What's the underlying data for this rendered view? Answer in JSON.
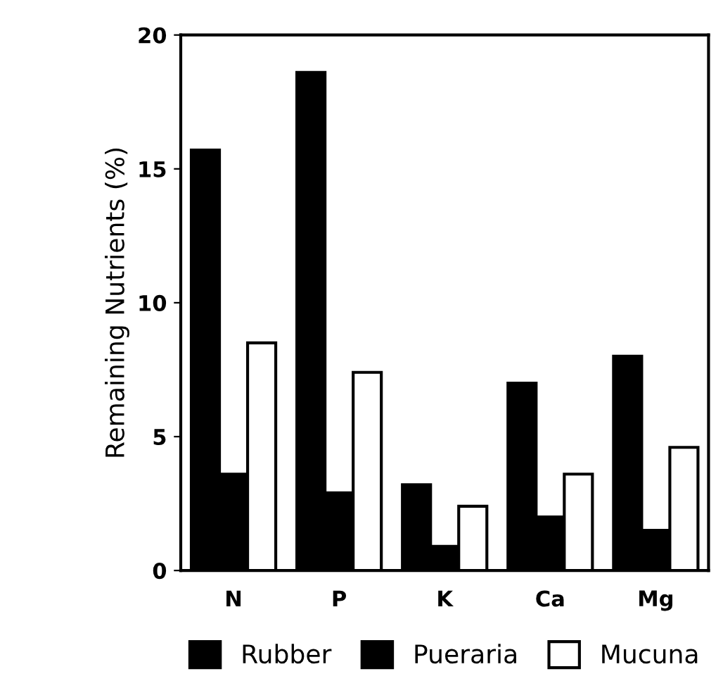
{
  "chart_data": {
    "type": "bar",
    "ylabel": "Remaining Nutrients (%)",
    "categories": [
      "N",
      "P",
      "K",
      "Ca",
      "Mg"
    ],
    "series": [
      {
        "name": "Rubber",
        "color": "#000000",
        "values": [
          15.7,
          18.6,
          3.2,
          7.0,
          8.0
        ]
      },
      {
        "name": "Pueraria",
        "color": "#000000",
        "values": [
          3.6,
          2.9,
          0.9,
          2.0,
          1.5
        ]
      },
      {
        "name": "Mucuna",
        "color": "#ffffff",
        "values": [
          8.5,
          7.4,
          2.4,
          3.6,
          4.6
        ]
      }
    ],
    "ylim": [
      0,
      20
    ],
    "yticks": [
      0,
      5,
      10,
      15,
      20
    ],
    "grid": false,
    "legend": "bottom"
  }
}
